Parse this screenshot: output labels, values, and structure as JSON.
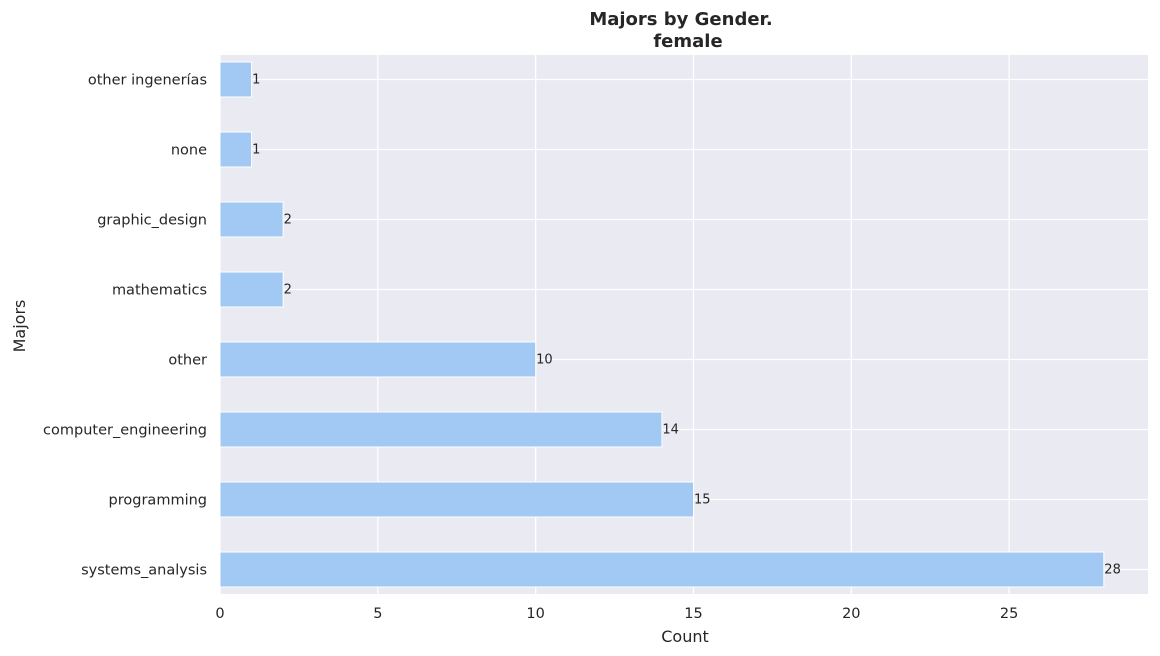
{
  "chart_data": {
    "type": "bar",
    "orientation": "horizontal",
    "title": "Majors by Gender.",
    "subtitle": "female",
    "xlabel": "Count",
    "ylabel": "Majors",
    "categories": [
      "systems_analysis",
      "programming",
      "computer_engineering",
      "other",
      "mathematics",
      "graphic_design",
      "none",
      "other ingenerías"
    ],
    "values": [
      28,
      15,
      14,
      10,
      2,
      2,
      1,
      1
    ],
    "xlim": [
      0,
      29.4
    ],
    "xticks": [
      0,
      5,
      10,
      15,
      20,
      25
    ],
    "grid": true,
    "colors": {
      "bar": "#a1c9f4",
      "background": "#eaeaf2",
      "grid": "#ffffff",
      "text": "#262626"
    }
  }
}
